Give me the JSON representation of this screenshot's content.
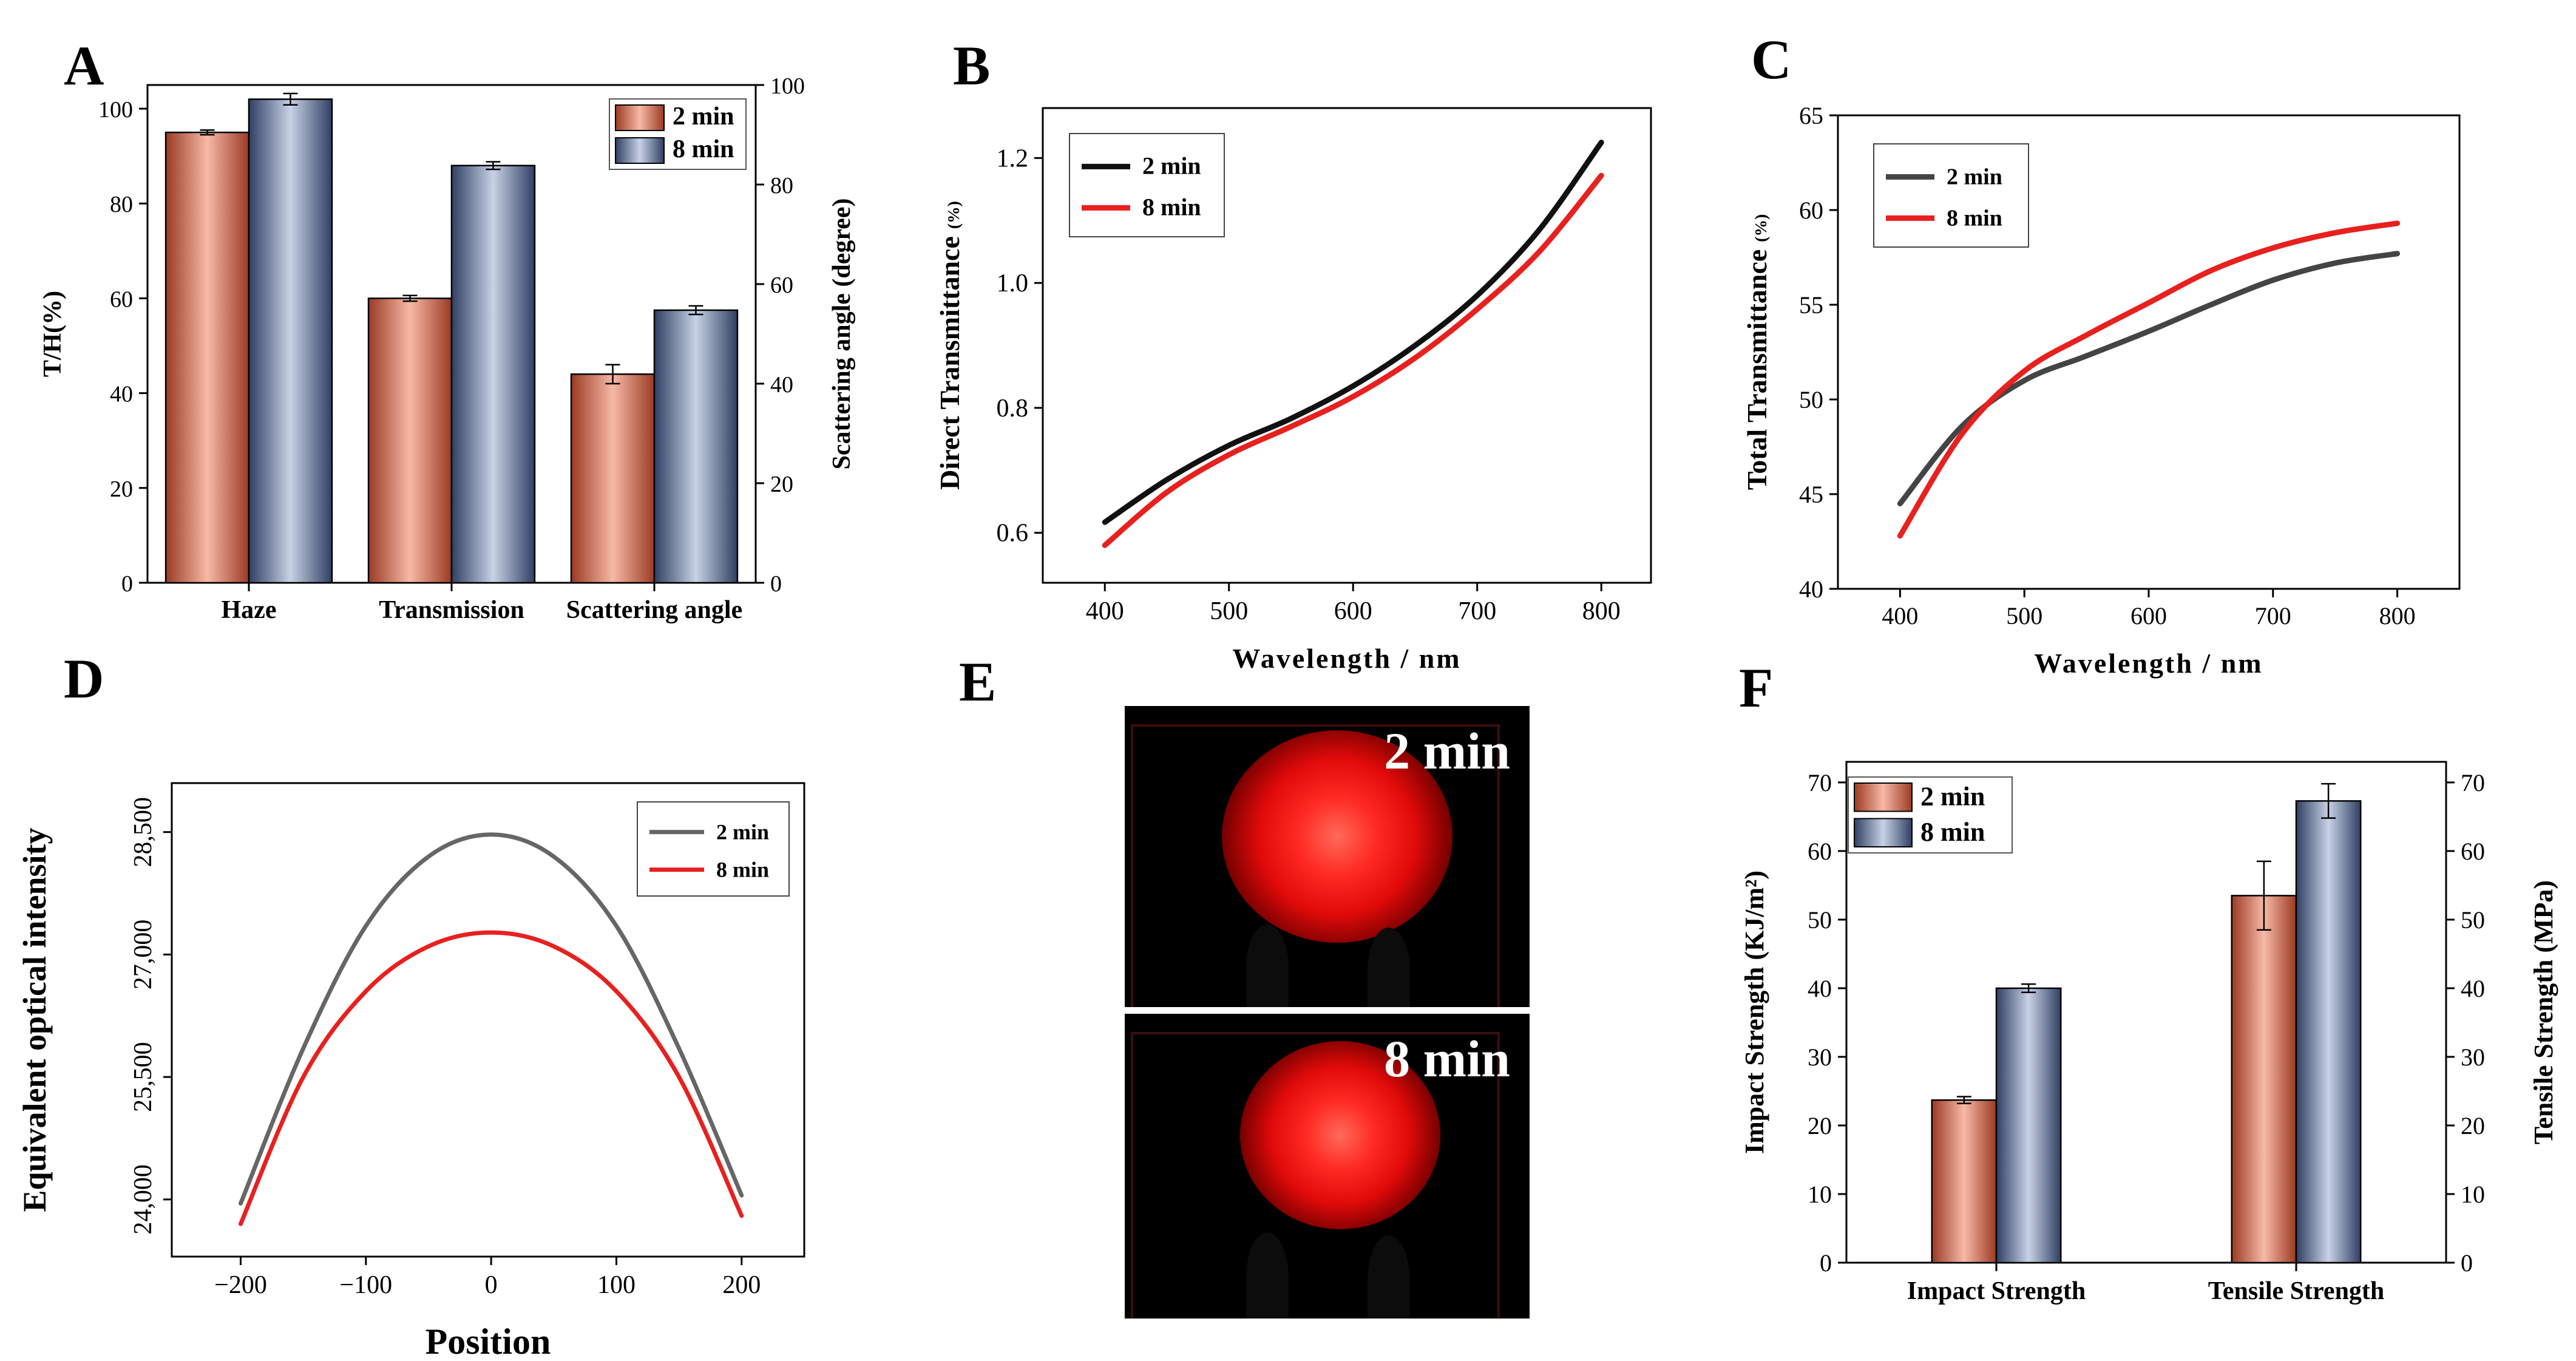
{
  "panel_labels": {
    "A": "A",
    "B": "B",
    "C": "C",
    "D": "D",
    "E": "E",
    "F": "F"
  },
  "colors": {
    "series_2min_bar": "#c8664f",
    "series_8min_bar": "#6f82a8",
    "line_2min_B": "#111111",
    "line_8min": "#e8201e",
    "line_2min_C": "#444444",
    "line_2min_D": "#666666"
  },
  "photos": {
    "top_caption": "2 min",
    "bottom_caption": "8 min"
  },
  "chart_data": [
    {
      "id": "A",
      "type": "bar",
      "title": "",
      "categories": [
        "Haze",
        "Transmission",
        "Scattering angle"
      ],
      "series": [
        {
          "name": "2 min",
          "values": [
            95,
            60,
            44
          ],
          "errors": [
            0.5,
            0.6,
            2.0
          ]
        },
        {
          "name": "8 min",
          "values": [
            102,
            88,
            57.5
          ],
          "errors": [
            1.2,
            0.8,
            0.9
          ]
        }
      ],
      "ylabel": "T/H(%)",
      "ylabel_right": "Scattering angle (degree)",
      "ylim": [
        0,
        105
      ],
      "yticks": [
        "0",
        "20",
        "40",
        "60",
        "80",
        "100"
      ],
      "ylim_right": [
        0,
        100
      ],
      "yticks_right": [
        "0",
        "20",
        "40",
        "60",
        "80",
        "100"
      ],
      "legend": "top-right"
    },
    {
      "id": "B",
      "type": "line",
      "xlabel": "Wavelength / nm",
      "ylabel": "Direct Transmittance",
      "ylabel_unit": "(%)",
      "xlim": [
        350,
        840
      ],
      "ylim": [
        0.52,
        1.28
      ],
      "xticks": [
        "400",
        "500",
        "600",
        "700",
        "800"
      ],
      "yticks": [
        "0.6",
        "0.8",
        "1.0",
        "1.2"
      ],
      "legend": "top-left",
      "series": [
        {
          "name": "2 min",
          "x": [
            400,
            450,
            500,
            550,
            600,
            650,
            700,
            750,
            800
          ],
          "y": [
            0.617,
            0.685,
            0.74,
            0.783,
            0.835,
            0.9,
            0.98,
            1.085,
            1.225
          ]
        },
        {
          "name": "8 min",
          "x": [
            400,
            450,
            500,
            550,
            600,
            650,
            700,
            750,
            800
          ],
          "y": [
            0.58,
            0.665,
            0.725,
            0.77,
            0.818,
            0.88,
            0.958,
            1.05,
            1.172
          ]
        }
      ]
    },
    {
      "id": "C",
      "type": "line",
      "xlabel": "Wavelength / nm",
      "ylabel": "Total Transmittance",
      "ylabel_unit": "(%)",
      "xlim": [
        350,
        850
      ],
      "ylim": [
        40,
        65
      ],
      "xticks": [
        "400",
        "500",
        "600",
        "700",
        "800"
      ],
      "yticks": [
        "40",
        "45",
        "50",
        "55",
        "60",
        "65"
      ],
      "legend": "top-left",
      "series": [
        {
          "name": "2 min",
          "x": [
            400,
            450,
            500,
            550,
            600,
            650,
            700,
            750,
            800
          ],
          "y": [
            44.5,
            48.6,
            51.0,
            52.3,
            53.6,
            55.0,
            56.3,
            57.2,
            57.7
          ]
        },
        {
          "name": "8 min",
          "x": [
            400,
            450,
            500,
            550,
            600,
            650,
            700,
            750,
            800
          ],
          "y": [
            42.8,
            48.2,
            51.5,
            53.4,
            55.1,
            56.8,
            58.0,
            58.8,
            59.3
          ]
        }
      ]
    },
    {
      "id": "D",
      "type": "line",
      "xlabel": "Position",
      "ylabel": "Equivalent optical intensity",
      "xlim": [
        -255,
        250
      ],
      "ylim": [
        23300,
        29100
      ],
      "xticks": [
        "−200",
        "−100",
        "0",
        "100",
        "200"
      ],
      "yticks": [
        "24,000",
        "25,500",
        "27,000",
        "28,500"
      ],
      "legend": "top-right",
      "series": [
        {
          "name": "2 min",
          "x": [
            -200,
            -150,
            -100,
            -50,
            0,
            50,
            100,
            150,
            200
          ],
          "y": [
            23950,
            25850,
            27350,
            28200,
            28470,
            28200,
            27350,
            25850,
            24050
          ]
        },
        {
          "name": "8 min",
          "x": [
            -200,
            -150,
            -100,
            -50,
            0,
            50,
            100,
            150,
            200
          ],
          "y": [
            23700,
            25500,
            26550,
            27100,
            27270,
            27100,
            26550,
            25500,
            23800
          ]
        }
      ]
    },
    {
      "id": "F",
      "type": "bar",
      "categories": [
        "Impact Strength",
        "Tensile Strength"
      ],
      "series": [
        {
          "name": "2 min",
          "values": [
            23.7,
            53.5
          ],
          "errors": [
            0.5,
            5.0
          ]
        },
        {
          "name": "8 min",
          "values": [
            40.0,
            67.3
          ],
          "errors": [
            0.6,
            2.5
          ]
        }
      ],
      "ylabel": "Impact Strength (KJ/m²)",
      "ylabel_right": "Tensile Strength (MPa)",
      "ylim": [
        0,
        73
      ],
      "yticks": [
        "0",
        "10",
        "20",
        "30",
        "40",
        "50",
        "60",
        "70"
      ],
      "yticks_right": [
        "0",
        "10",
        "20",
        "30",
        "40",
        "50",
        "60",
        "70"
      ],
      "legend": "top-left"
    }
  ]
}
